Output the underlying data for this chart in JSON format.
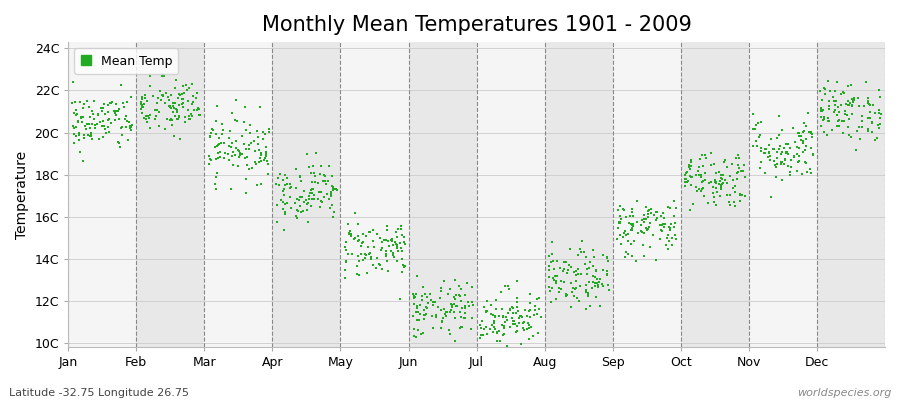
{
  "title": "Monthly Mean Temperatures 1901 - 2009",
  "ylabel": "Temperature",
  "subtitle_left": "Latitude -32.75 Longitude 26.75",
  "subtitle_right": "worldspecies.org",
  "legend_label": "Mean Temp",
  "months": [
    "Jan",
    "Feb",
    "Mar",
    "Apr",
    "May",
    "Jun",
    "Jul",
    "Aug",
    "Sep",
    "Oct",
    "Nov",
    "Dec"
  ],
  "month_means": [
    20.5,
    21.2,
    19.3,
    17.2,
    14.5,
    11.5,
    11.2,
    13.0,
    15.5,
    17.8,
    19.2,
    21.0
  ],
  "month_stds": [
    0.7,
    0.7,
    0.8,
    0.7,
    0.7,
    0.7,
    0.7,
    0.7,
    0.7,
    0.7,
    0.8,
    0.7
  ],
  "n_years": 109,
  "seed": 42,
  "dot_color": "#22aa22",
  "dot_size": 3,
  "ylim_min": 9.8,
  "ylim_max": 24.3,
  "yticks": [
    10,
    12,
    14,
    16,
    18,
    20,
    22,
    24
  ],
  "ytick_labels": [
    "10C",
    "12C",
    "14C",
    "16C",
    "18C",
    "20C",
    "22C",
    "24C"
  ],
  "bg_color": "#ffffff",
  "band_color_odd": "#e8e8e8",
  "band_color_even": "#f5f5f5",
  "title_fontsize": 15,
  "axis_fontsize": 10,
  "tick_fontsize": 9,
  "legend_fontsize": 9
}
